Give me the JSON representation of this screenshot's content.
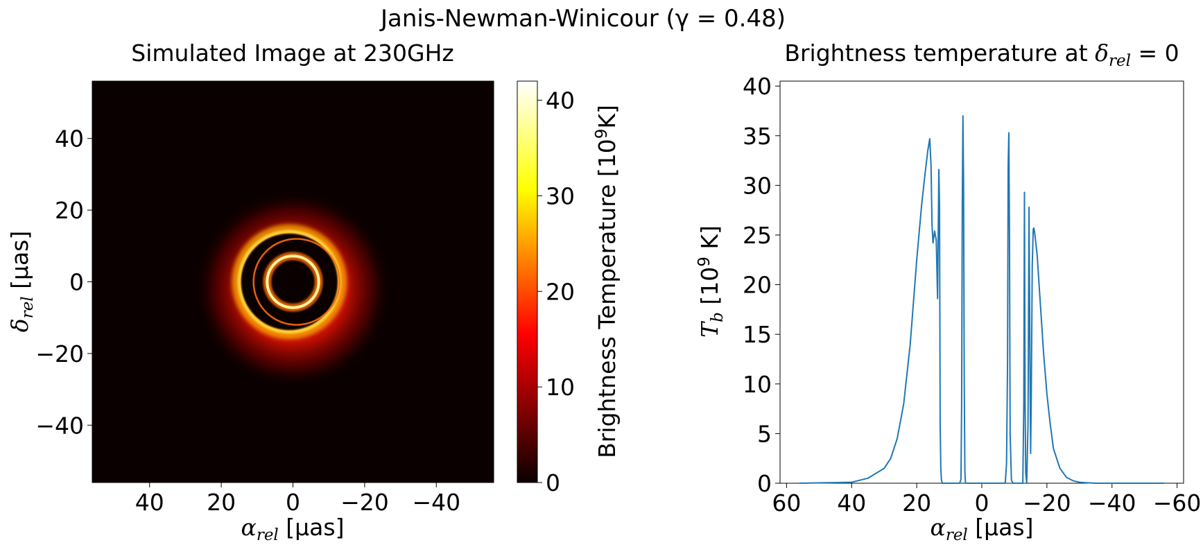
{
  "figure": {
    "suptitle": "Janis-Newman-Winicour (γ = 0.48)"
  },
  "chart_data": [
    {
      "type": "heatmap",
      "title": "Simulated Image at 230GHz",
      "xlabel": "α_rel [μas]",
      "ylabel": "δ_rel [μas]",
      "xlabel_parts": {
        "sym": "α",
        "sub": "rel",
        "unit": " [μas]"
      },
      "ylabel_parts": {
        "sym": "δ",
        "sub": "rel",
        "unit": " [μas]"
      },
      "xlim": [
        56,
        -56
      ],
      "ylim": [
        -56,
        56
      ],
      "x_ticks": [
        40,
        20,
        0,
        -20,
        -40
      ],
      "y_ticks": [
        40,
        20,
        0,
        -20,
        -40
      ],
      "x_tick_labels": [
        "40",
        "20",
        "0",
        "−20",
        "−40"
      ],
      "y_tick_labels": [
        "40",
        "20",
        "0",
        "−20",
        "−40"
      ],
      "colormap": "hot",
      "colorbar": {
        "label_prefix": "Brightness Temperature [10",
        "label_exp": "9",
        "label_suffix": "K]",
        "label": "Brightness Temperature [10^9K]",
        "range": [
          0,
          42
        ],
        "ticks": [
          0,
          10,
          20,
          30,
          40
        ],
        "tick_labels": [
          "0",
          "10",
          "20",
          "30",
          "40"
        ]
      },
      "features": [
        {
          "name": "inner ring",
          "center": [
            0,
            0
          ],
          "radius": 7.2,
          "peak": 37
        },
        {
          "name": "outer photon ring",
          "center": [
            1,
            0
          ],
          "radius": 14,
          "peak": 35
        },
        {
          "name": "secondary ring",
          "center": [
            -1,
            0
          ],
          "radius": 12,
          "peak": 28
        },
        {
          "name": "diffuse emission",
          "center": [
            0,
            -2
          ],
          "radius": 19,
          "peak": 28
        }
      ]
    },
    {
      "type": "line",
      "title_prefix": "Brightness temperature at ",
      "title_sym": "δ",
      "title_sub": "rel",
      "title_suffix": " = 0",
      "title": "Brightness temperature at δ_rel = 0",
      "xlabel": "α_rel [μas]",
      "ylabel": "T_b [10^9 K]",
      "xlabel_parts": {
        "sym": "α",
        "sub": "rel",
        "unit": " [μas]"
      },
      "ylabel_parts": {
        "sym": "T",
        "sub": "b",
        "unit_pre": " [10",
        "exp": "9",
        "unit_post": " K]"
      },
      "xlim": [
        62,
        -62
      ],
      "ylim": [
        0,
        40.5
      ],
      "x_ticks": [
        60,
        40,
        20,
        0,
        -20,
        -40,
        -60
      ],
      "y_ticks": [
        0,
        5,
        10,
        15,
        20,
        25,
        30,
        35,
        40
      ],
      "x_tick_labels": [
        "60",
        "40",
        "20",
        "0",
        "−20",
        "−40",
        "−60"
      ],
      "y_tick_labels": [
        "0",
        "5",
        "10",
        "15",
        "20",
        "25",
        "30",
        "35",
        "40"
      ],
      "color": "#1f77b4",
      "series": [
        {
          "x": [
            56,
            40,
            35,
            30,
            28,
            26,
            24,
            22,
            20,
            18.5,
            17.5,
            16.6,
            16.0,
            15.6,
            15.3,
            15.0,
            14.5,
            14.0,
            13.6,
            13.2,
            13.0,
            12.9,
            12.8,
            12.6,
            12.4,
            12.1,
            11.5,
            11.0,
            10.0,
            6.8,
            6.4,
            6.2,
            6.0,
            5.8,
            5.6,
            5.4,
            5.2,
            5.0,
            4.6,
            4.0,
            0,
            -5,
            -7.2,
            -7.6,
            -7.9,
            -8.1,
            -8.3,
            -8.5,
            -8.7,
            -9.1,
            -9.6,
            -10,
            -12.6,
            -12.9,
            -13.1,
            -13.3,
            -13.5,
            -13.8,
            -14.2,
            -14.5,
            -14.8,
            -15.0,
            -15.2,
            -15.5,
            -15.8,
            -16.0,
            -16.2,
            -16.5,
            -17.0,
            -17.5,
            -18.0,
            -19.0,
            -20.0,
            -21.0,
            -22.0,
            -24.0,
            -26.0,
            -28.0,
            -30.0,
            -32.0,
            -35.0,
            -40.0,
            -45.0,
            -56.0
          ],
          "y": [
            0,
            0.1,
            0.5,
            1.5,
            2.5,
            4.5,
            8,
            14,
            22.5,
            28,
            31,
            33.5,
            34.7,
            32,
            26,
            24.2,
            25.4,
            24.5,
            18.6,
            31.6,
            28,
            18,
            6,
            1.5,
            0.3,
            0,
            0,
            0,
            0,
            0,
            0.4,
            8,
            28,
            37,
            30,
            10,
            1,
            0,
            0,
            0,
            0,
            0,
            0,
            2,
            12,
            32,
            35.3,
            25,
            5,
            0.3,
            0,
            0,
            0,
            8,
            29.3,
            8,
            1,
            0,
            6,
            27.8,
            12,
            3,
            8.8,
            22,
            25.6,
            25.7,
            25.3,
            24.5,
            23,
            20.5,
            18,
            13,
            9,
            6,
            3.5,
            1.5,
            0.6,
            0.25,
            0.1,
            0.05,
            0,
            0,
            0,
            0
          ]
        }
      ]
    }
  ]
}
